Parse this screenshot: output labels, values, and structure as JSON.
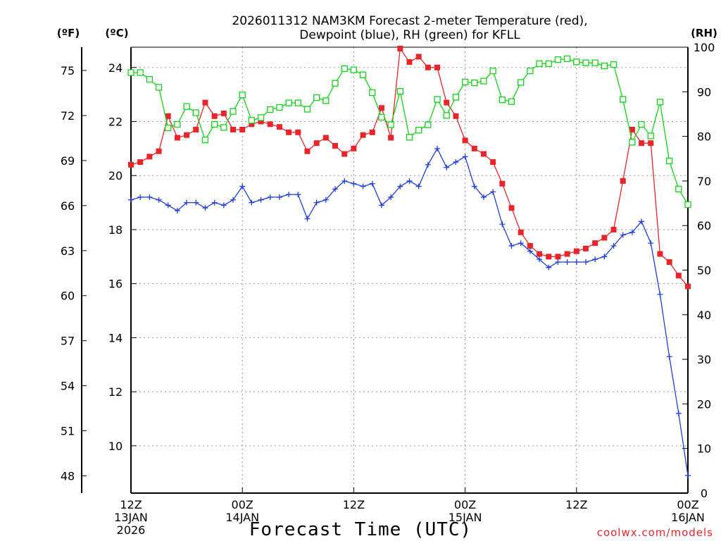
{
  "chart_data": {
    "type": "line",
    "title_line1": "2026011312 NAM3KM Forecast 2-meter Temperature (red),",
    "title_line2": "Dewpoint (blue), RH (green) for KFLL",
    "xlabel": "Forecast Time (UTC)",
    "watermark": "coolwx.com/models",
    "unit_f": "(ºF)",
    "unit_c": "(ºC)",
    "unit_rh": "(RH)",
    "x_range_hours": [
      0,
      60
    ],
    "x_ticks": [
      {
        "hour": 0,
        "line1": "12Z",
        "line2": "13JAN",
        "line3": "2026"
      },
      {
        "hour": 12,
        "line1": "00Z",
        "line2": "14JAN",
        "line3": ""
      },
      {
        "hour": 24,
        "line1": "12Z",
        "line2": "",
        "line3": ""
      },
      {
        "hour": 36,
        "line1": "00Z",
        "line2": "15JAN",
        "line3": ""
      },
      {
        "hour": 48,
        "line1": "12Z",
        "line2": "",
        "line3": ""
      },
      {
        "hour": 60,
        "line1": "00Z",
        "line2": "16JAN",
        "line3": ""
      }
    ],
    "celsius_axis": {
      "range": [
        8.25,
        24.75
      ],
      "ticks": [
        10,
        12,
        14,
        16,
        18,
        20,
        22,
        24
      ]
    },
    "fahrenheit_ticks": [
      48,
      51,
      54,
      57,
      60,
      63,
      66,
      69,
      72,
      75
    ],
    "rh_axis": {
      "range": [
        0,
        100
      ],
      "ticks": [
        0,
        10,
        20,
        30,
        40,
        50,
        60,
        70,
        80,
        90,
        100
      ]
    },
    "series": [
      {
        "name": "Temperature",
        "unit": "C",
        "color": "#e8252a",
        "marker": "filled-square",
        "hours": [
          0,
          1,
          2,
          3,
          4,
          5,
          6,
          7,
          8,
          9,
          10,
          11,
          12,
          13,
          14,
          15,
          16,
          17,
          18,
          19,
          20,
          21,
          22,
          23,
          24,
          25,
          26,
          27,
          28,
          29,
          30,
          31,
          32,
          33,
          34,
          35,
          36,
          37,
          38,
          39,
          40,
          41,
          42,
          43,
          44,
          45,
          46,
          47,
          48,
          49,
          50,
          51,
          52,
          53,
          54,
          55,
          56,
          57,
          58,
          59,
          60
        ],
        "values": [
          20.4,
          20.5,
          20.7,
          20.9,
          22.2,
          21.4,
          21.5,
          21.7,
          22.7,
          22.2,
          22.3,
          21.7,
          21.7,
          21.9,
          22.0,
          21.9,
          21.8,
          21.6,
          21.6,
          20.9,
          21.2,
          21.4,
          21.1,
          20.8,
          21.0,
          21.5,
          21.6,
          22.5,
          21.4,
          24.7,
          24.2,
          24.4,
          24.0,
          24.0,
          22.7,
          22.2,
          21.3,
          21.0,
          20.8,
          20.5,
          19.7,
          18.8,
          17.9,
          17.4,
          17.1,
          17.0,
          17.0,
          17.1,
          17.2,
          17.3,
          17.5,
          17.7,
          18.0,
          19.8,
          21.7,
          21.2,
          21.2,
          17.1,
          16.8,
          16.3,
          15.9
        ]
      },
      {
        "name": "Dewpoint",
        "unit": "C",
        "color": "#1f3fdc",
        "marker": "plus",
        "hours": [
          0,
          1,
          2,
          3,
          4,
          5,
          6,
          7,
          8,
          9,
          10,
          11,
          12,
          13,
          14,
          15,
          16,
          17,
          18,
          19,
          20,
          21,
          22,
          23,
          24,
          25,
          26,
          27,
          28,
          29,
          30,
          31,
          32,
          33,
          34,
          35,
          36,
          37,
          38,
          39,
          40,
          41,
          42,
          43,
          44,
          45,
          46,
          47,
          48,
          49,
          50,
          51,
          52,
          53,
          54,
          55,
          56,
          57,
          58,
          59,
          60
        ],
        "values": [
          19.1,
          19.2,
          19.2,
          19.1,
          18.9,
          18.7,
          19.0,
          19.0,
          18.8,
          19.0,
          18.9,
          19.1,
          19.6,
          19.0,
          19.1,
          19.2,
          19.2,
          19.3,
          19.3,
          18.4,
          19.0,
          19.1,
          19.5,
          19.8,
          19.7,
          19.6,
          19.7,
          18.9,
          19.2,
          19.6,
          19.8,
          19.6,
          20.4,
          21.0,
          20.3,
          20.5,
          20.7,
          19.6,
          19.2,
          19.4,
          18.2,
          17.4,
          17.5,
          17.2,
          16.9,
          16.6,
          16.8,
          16.8,
          16.8,
          16.8,
          16.9,
          17.0,
          17.4,
          17.8,
          17.9,
          18.3,
          17.5,
          15.6,
          13.3,
          11.2,
          8.9
        ]
      },
      {
        "name": "RH",
        "unit": "%",
        "color": "#12d21a",
        "marker": "open-square",
        "hours": [
          0,
          1,
          2,
          3,
          4,
          5,
          6,
          7,
          8,
          9,
          10,
          11,
          12,
          13,
          14,
          15,
          16,
          17,
          18,
          19,
          20,
          21,
          22,
          23,
          24,
          25,
          26,
          27,
          28,
          29,
          30,
          31,
          32,
          33,
          34,
          35,
          36,
          37,
          38,
          39,
          40,
          41,
          42,
          43,
          44,
          45,
          46,
          47,
          48,
          49,
          50,
          51,
          52,
          53,
          54,
          55,
          56,
          57,
          58,
          59,
          60
        ],
        "values": [
          94.3,
          94.3,
          92.8,
          91.0,
          81.9,
          82.7,
          86.7,
          85.3,
          79.2,
          82.7,
          82.0,
          85.6,
          89.3,
          83.6,
          84.2,
          86.0,
          86.5,
          87.5,
          87.5,
          86.1,
          88.7,
          88.0,
          91.9,
          95.2,
          94.9,
          93.8,
          89.8,
          84.3,
          82.6,
          90.1,
          79.8,
          81.4,
          82.6,
          88.3,
          84.7,
          88.8,
          92.2,
          92.0,
          92.4,
          94.7,
          88.2,
          87.8,
          92.1,
          94.7,
          96.3,
          96.3,
          97.2,
          97.4,
          96.7,
          96.5,
          96.5,
          95.8,
          96.1,
          88.3,
          78.7,
          82.7,
          80.1,
          87.7,
          74.5,
          68.2,
          64.7
        ]
      }
    ]
  }
}
